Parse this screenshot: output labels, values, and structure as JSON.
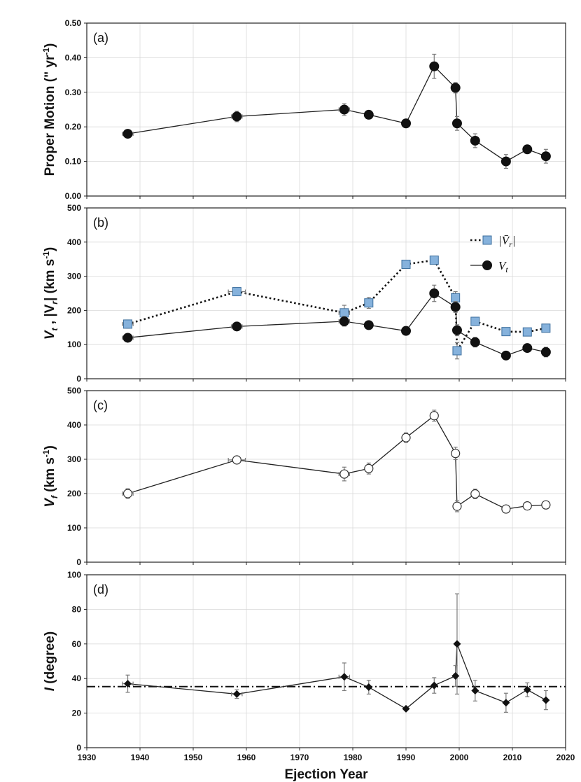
{
  "chart_data": [
    {
      "id": "a",
      "type": "line",
      "panel_label": "(a)",
      "ylabel": "Proper Motion (\" yr-1)",
      "ylabel_main": "Proper Motion (\" yr",
      "ylabel_sup": "-1",
      "ylabel_close": ")",
      "ylim": [
        0,
        0.5
      ],
      "yticks": [
        "0.00",
        "0.10",
        "0.20",
        "0.30",
        "0.40",
        "0.50"
      ],
      "series": [
        {
          "name": "Proper Motion",
          "marker": "filled-circle",
          "line": "solid",
          "x": [
            1937.7,
            1958.2,
            1978.4,
            1983.0,
            1990.0,
            1995.3,
            1999.3,
            1999.6,
            2003.0,
            2008.8,
            2012.8,
            2016.3
          ],
          "y": [
            0.18,
            0.23,
            0.25,
            0.235,
            0.21,
            0.375,
            0.313,
            0.21,
            0.16,
            0.1,
            0.135,
            0.115
          ],
          "yerr": [
            0.0,
            0.015,
            0.017,
            0.0,
            0.0,
            0.035,
            0.015,
            0.02,
            0.02,
            0.02,
            0.0,
            0.02
          ],
          "xerr": [
            1.0,
            1.0,
            1.0,
            0.0,
            0.0,
            0.0,
            0.0,
            0.0,
            0.0,
            0.0,
            0.0,
            0.0
          ]
        }
      ]
    },
    {
      "id": "b",
      "type": "line",
      "panel_label": "(b)",
      "ylabel": "Vt , |Vr| (km s-1)",
      "ylabel_main": "V",
      "ylabel_sub": "t",
      "ylabel_mid": " , |V",
      "ylabel_sub2": "r",
      "ylabel_end": "| (km s",
      "ylabel_sup": "-1",
      "ylabel_close": ")",
      "ylim": [
        0,
        500
      ],
      "yticks": [
        "0",
        "100",
        "200",
        "300",
        "400",
        "500"
      ],
      "legend": {
        "position": "top-right",
        "entries": [
          {
            "label": "|V̄r|",
            "label_main": "|V̄",
            "label_sub": "r",
            "label_close": "|"
          },
          {
            "label": "Vt",
            "label_main": "V",
            "label_sub": "t",
            "label_close": ""
          }
        ]
      },
      "series": [
        {
          "name": "|V̄r|",
          "marker": "blue-square",
          "line": "dotted",
          "x": [
            1937.7,
            1958.2,
            1978.4,
            1983.0,
            1990.0,
            1995.3,
            1999.3,
            1999.6,
            2003.0,
            2008.8,
            2012.8,
            2016.3
          ],
          "y": [
            160,
            255,
            193,
            222,
            335,
            347,
            237,
            82,
            168,
            138,
            137,
            148
          ],
          "yerr": [
            12,
            0,
            22,
            16,
            12,
            0,
            18,
            24,
            0,
            0,
            0,
            0
          ],
          "xerr": [
            1.0,
            1.6,
            1.0,
            0.0,
            0.0,
            0.0,
            0.0,
            0.0,
            0.0,
            0.0,
            0.0,
            0.0
          ]
        },
        {
          "name": "Vt",
          "marker": "filled-circle",
          "line": "solid",
          "x": [
            1937.7,
            1958.2,
            1978.4,
            1983.0,
            1990.0,
            1995.3,
            1999.3,
            1999.6,
            2003.0,
            2008.8,
            2012.8,
            2016.3
          ],
          "y": [
            120,
            153,
            168,
            157,
            140,
            250,
            210,
            142,
            107,
            68,
            90,
            78
          ],
          "yerr": [
            0,
            12,
            14,
            0,
            0,
            24,
            16,
            16,
            14,
            12,
            0,
            14
          ],
          "xerr": [
            1.0,
            1.0,
            1.0,
            0.0,
            0.0,
            0.0,
            0.0,
            0.0,
            0.0,
            0.0,
            0.0,
            0.0
          ]
        }
      ]
    },
    {
      "id": "c",
      "type": "line",
      "panel_label": "(c)",
      "ylabel": "Vf (km s-1)",
      "ylabel_main": "V",
      "ylabel_sub": "f",
      "ylabel_end": " (km s",
      "ylabel_sup": "-1",
      "ylabel_close": ")",
      "ylim": [
        0,
        500
      ],
      "yticks": [
        "0",
        "100",
        "200",
        "300",
        "400",
        "500"
      ],
      "series": [
        {
          "name": "Vf",
          "marker": "open-circle",
          "line": "solid",
          "x": [
            1937.7,
            1958.2,
            1978.4,
            1983.0,
            1990.0,
            1995.3,
            1999.3,
            1999.6,
            2003.0,
            2008.8,
            2012.8,
            2016.3
          ],
          "y": [
            200,
            298,
            257,
            273,
            363,
            427,
            317,
            163,
            199,
            155,
            164,
            167
          ],
          "yerr": [
            14,
            0,
            20,
            16,
            14,
            16,
            18,
            16,
            14,
            0,
            0,
            0
          ],
          "xerr": [
            1.0,
            1.6,
            1.0,
            0.0,
            0.0,
            0.0,
            0.0,
            0.0,
            0.0,
            0.0,
            0.0,
            0.0
          ]
        }
      ]
    },
    {
      "id": "d",
      "type": "line",
      "panel_label": "(d)",
      "ylabel": "I (degree)",
      "ylabel_main": "I",
      "ylabel_end": " (degree)",
      "ylim": [
        0,
        100
      ],
      "yticks": [
        "0",
        "20",
        "40",
        "60",
        "80",
        "100"
      ],
      "xlabel": "Ejection Year",
      "xlim": [
        1930,
        2020
      ],
      "xticks": [
        "1930",
        "1940",
        "1950",
        "1960",
        "1970",
        "1980",
        "1990",
        "2000",
        "2010",
        "2020"
      ],
      "reference_line": {
        "y": 35.3,
        "style": "dash-dot"
      },
      "series": [
        {
          "name": "I",
          "marker": "filled-diamond",
          "line": "solid",
          "x": [
            1937.7,
            1958.2,
            1978.4,
            1983.0,
            1990.0,
            1995.3,
            1999.3,
            1999.6,
            2003.0,
            2008.8,
            2012.8,
            2016.3
          ],
          "y": [
            37,
            31,
            41,
            35,
            22.5,
            36,
            41.5,
            60,
            33,
            26,
            33.5,
            27.5
          ],
          "yerr": [
            5,
            2.5,
            8,
            4,
            0,
            4.5,
            6,
            29,
            6,
            5.5,
            4,
            5.5
          ],
          "xerr": [
            1.0,
            1.0,
            1.0,
            0.0,
            0.0,
            0.0,
            0.0,
            0.0,
            0.0,
            0.0,
            0.0,
            0.0
          ]
        }
      ]
    }
  ],
  "colors": {
    "square_fill": "#86b2dc",
    "square_stroke": "#3d6f9e",
    "marker_dark": "#111111",
    "errorbar": "#7a7a7a",
    "grid": "#d9d9d9"
  }
}
